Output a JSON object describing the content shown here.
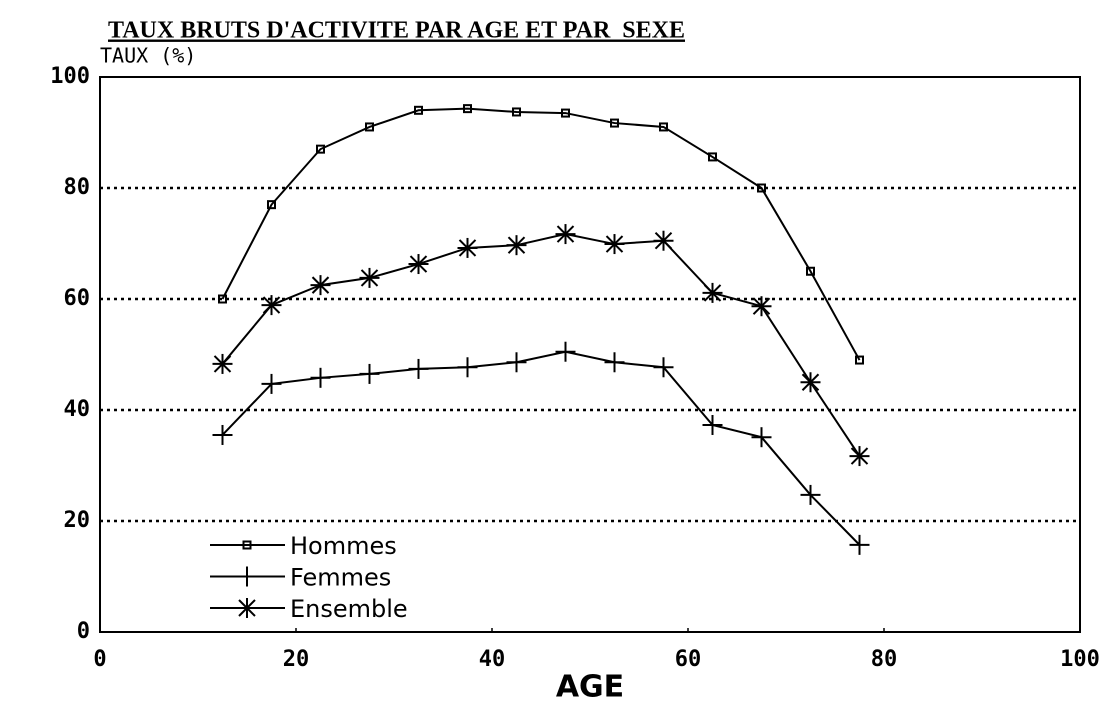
{
  "chart_data": {
    "type": "line",
    "title": "TAUX BRUTS D'ACTIVITE PAR AGE ET PAR  SEXE",
    "y_label": "TAUX (%)",
    "x_label": "AGE",
    "x": [
      12.5,
      17.5,
      22.5,
      27.5,
      32.5,
      37.5,
      42.5,
      47.5,
      52.5,
      57.5,
      62.5,
      67.5,
      72.5,
      77.5
    ],
    "series": [
      {
        "name": "Hommes",
        "color": "#000000",
        "marker": "square",
        "values": [
          60,
          77,
          87,
          91,
          94,
          94.3,
          93.7,
          93.5,
          91.7,
          91,
          85.6,
          80,
          65,
          49
        ]
      },
      {
        "name": "Femmes",
        "color": "#000000",
        "marker": "plus",
        "values": [
          35.5,
          44.7,
          45.8,
          46.5,
          47.4,
          47.7,
          48.6,
          50.5,
          48.6,
          47.7,
          37.3,
          35.1,
          24.7,
          15.7
        ]
      },
      {
        "name": "Ensemble",
        "color": "#000000",
        "marker": "star",
        "values": [
          48.3,
          58.9,
          62.5,
          63.8,
          66.3,
          69.2,
          69.7,
          71.7,
          69.9,
          70.5,
          61.1,
          58.7,
          45,
          31.7
        ]
      }
    ],
    "xlim": [
      0,
      100
    ],
    "xticks": [
      0,
      20,
      40,
      60,
      80,
      100
    ],
    "ylim": [
      0,
      100
    ],
    "yticks": [
      0,
      20,
      40,
      60,
      80,
      100
    ],
    "grid": true,
    "legend": "lower left"
  }
}
